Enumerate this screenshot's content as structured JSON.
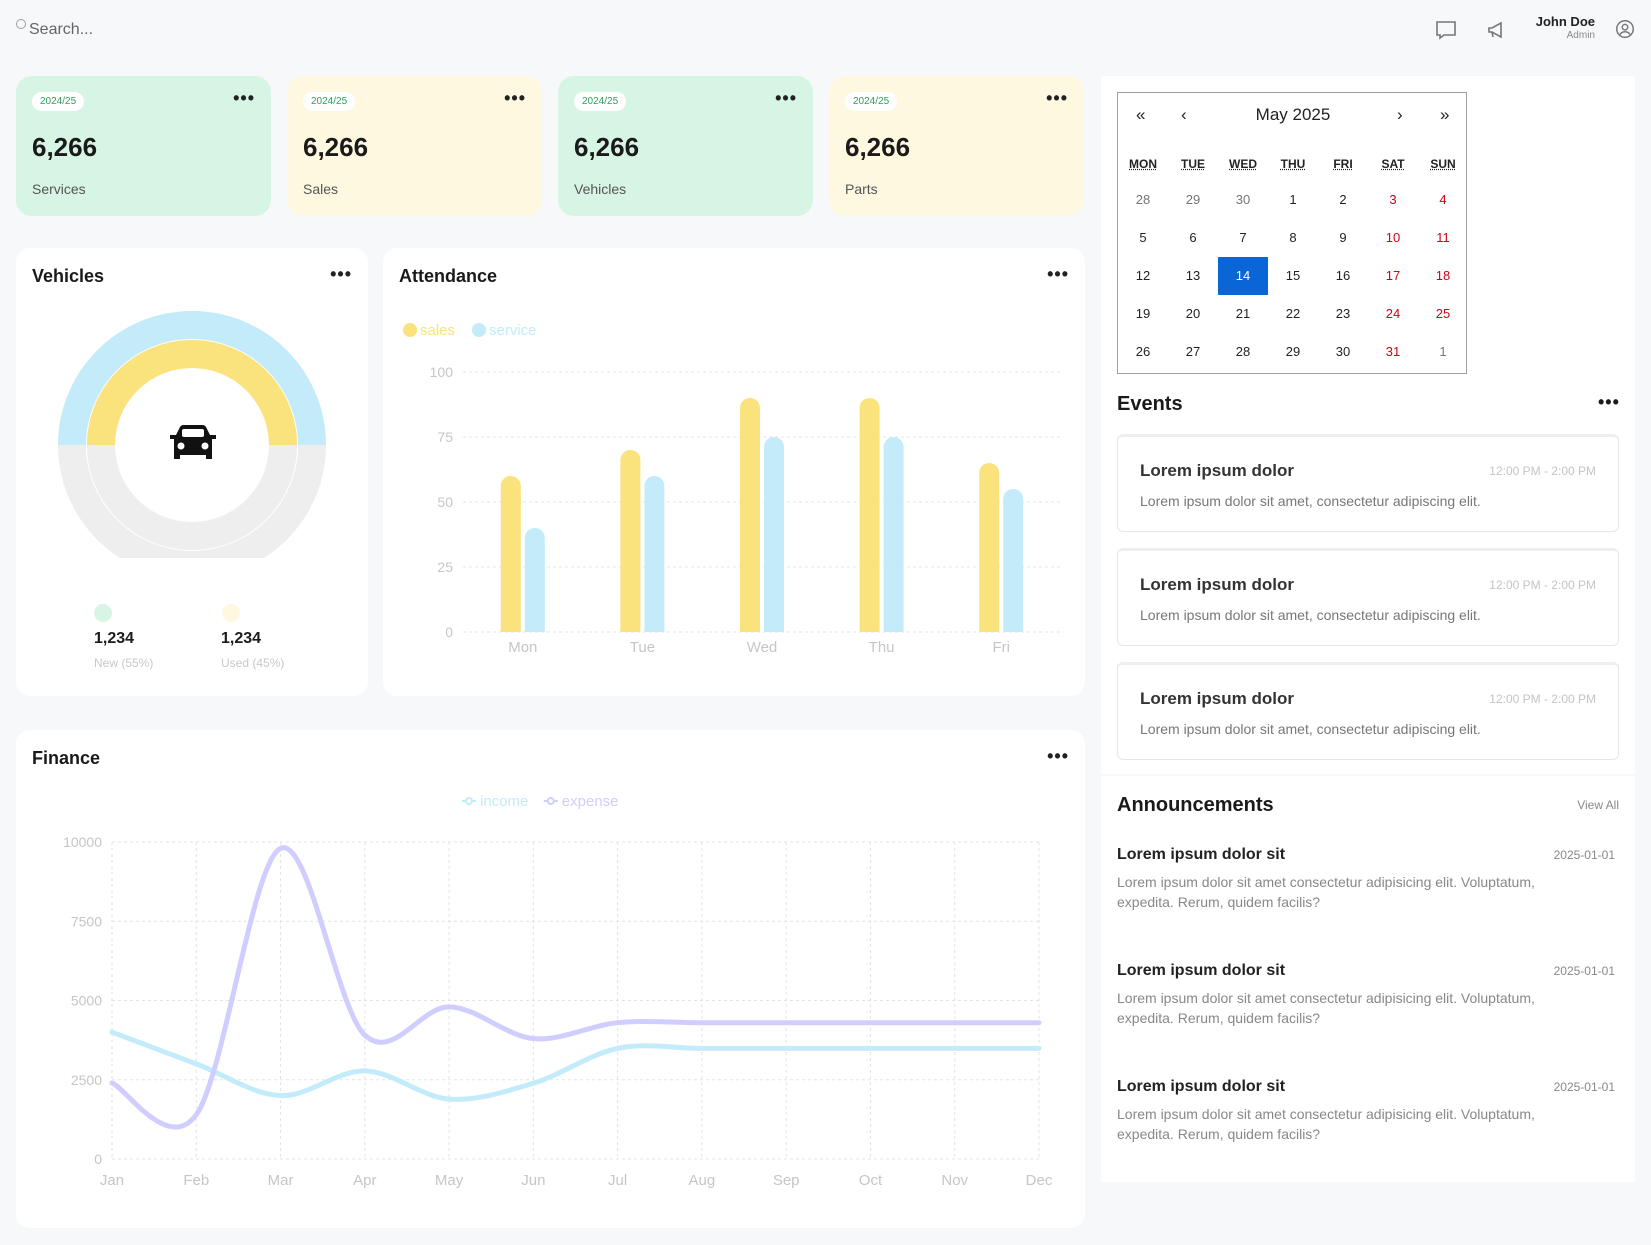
{
  "header": {
    "search_placeholder": "Search...",
    "user_name": "John Doe",
    "user_role": "Admin",
    "icons": [
      "search-icon",
      "message-icon",
      "announcement-icon",
      "user-icon"
    ]
  },
  "stats": [
    {
      "badge": "2024/25",
      "value": "6,266",
      "label": "Services",
      "color": "#d6f5e5"
    },
    {
      "badge": "2024/25",
      "value": "6,266",
      "label": "Sales",
      "color": "#fff8e1"
    },
    {
      "badge": "2024/25",
      "value": "6,266",
      "label": "Vehicles",
      "color": "#d6f5e5"
    },
    {
      "badge": "2024/25",
      "value": "6,266",
      "label": "Parts",
      "color": "#fff8e1"
    }
  ],
  "more_label": "•••",
  "vehicles": {
    "title": "Vehicles",
    "new_value": "1,234",
    "new_label": "New (55%)",
    "used_value": "1,234",
    "used_label": "Used (45%)",
    "icon": "car-icon"
  },
  "attendance": {
    "title": "Attendance"
  },
  "finance": {
    "title": "Finance"
  },
  "calendar": {
    "title": "May 2025",
    "nav_prev_year": "«",
    "nav_prev": "‹",
    "nav_next": "›",
    "nav_next_year": "»",
    "weekdays": [
      "MON",
      "TUE",
      "WED",
      "THU",
      "FRI",
      "SAT",
      "SUN"
    ],
    "weeks": [
      [
        "28",
        "29",
        "30",
        "1",
        "2",
        "3",
        "4"
      ],
      [
        "5",
        "6",
        "7",
        "8",
        "9",
        "10",
        "11"
      ],
      [
        "12",
        "13",
        "14",
        "15",
        "16",
        "17",
        "18"
      ],
      [
        "19",
        "20",
        "21",
        "22",
        "23",
        "24",
        "25"
      ],
      [
        "26",
        "27",
        "28",
        "29",
        "30",
        "31",
        "1"
      ]
    ],
    "selected": "14"
  },
  "events": {
    "title": "Events",
    "items": [
      {
        "title": "Lorem ipsum dolor",
        "time": "12:00 PM - 2:00 PM",
        "desc": "Lorem ipsum dolor sit amet, consectetur adipiscing elit."
      },
      {
        "title": "Lorem ipsum dolor",
        "time": "12:00 PM - 2:00 PM",
        "desc": "Lorem ipsum dolor sit amet, consectetur adipiscing elit."
      },
      {
        "title": "Lorem ipsum dolor",
        "time": "12:00 PM - 2:00 PM",
        "desc": "Lorem ipsum dolor sit amet, consectetur adipiscing elit."
      }
    ]
  },
  "announcements": {
    "title": "Announcements",
    "view_all": "View All",
    "items": [
      {
        "title": "Lorem ipsum dolor sit",
        "date": "2025-01-01",
        "desc": "Lorem ipsum dolor sit amet consectetur adipisicing elit. Voluptatum, expedita. Rerum, quidem facilis?"
      },
      {
        "title": "Lorem ipsum dolor sit",
        "date": "2025-01-01",
        "desc": "Lorem ipsum dolor sit amet consectetur adipisicing elit. Voluptatum, expedita. Rerum, quidem facilis?"
      },
      {
        "title": "Lorem ipsum dolor sit",
        "date": "2025-01-01",
        "desc": "Lorem ipsum dolor sit amet consectetur adipisicing elit. Voluptatum, expedita. Rerum, quidem facilis?"
      }
    ]
  },
  "colors": {
    "green": "#d6f5e5",
    "yellow": "#fae27c",
    "blue": "#c3ebfa",
    "purple": "#cfceff",
    "weekend": "#d0021b",
    "selected": "#0a66d6"
  },
  "chart_data": [
    {
      "type": "pie",
      "title": "Vehicles",
      "series": [
        {
          "name": "New",
          "values": [
            55
          ]
        },
        {
          "name": "Used",
          "values": [
            45
          ]
        }
      ],
      "legend": [
        "New (55%)",
        "Used (45%)"
      ]
    },
    {
      "type": "bar",
      "title": "Attendance",
      "categories": [
        "Mon",
        "Tue",
        "Wed",
        "Thu",
        "Fri"
      ],
      "series": [
        {
          "name": "sales",
          "values": [
            60,
            70,
            90,
            90,
            65
          ],
          "color": "#fae27c"
        },
        {
          "name": "service",
          "values": [
            40,
            60,
            75,
            75,
            55
          ],
          "color": "#c3ebfa"
        }
      ],
      "yticks": [
        0,
        25,
        50,
        75,
        100
      ],
      "ylim": [
        0,
        100
      ],
      "grid": true,
      "legend_position": "top-left"
    },
    {
      "type": "line",
      "title": "Finance",
      "categories": [
        "Jan",
        "Feb",
        "Mar",
        "Apr",
        "May",
        "Jun",
        "Jul",
        "Aug",
        "Sep",
        "Oct",
        "Nov",
        "Dec"
      ],
      "series": [
        {
          "name": "income",
          "values": [
            4000,
            3000,
            2000,
            2780,
            1890,
            2390,
            3490,
            3490,
            3490,
            3490,
            3490,
            3490
          ],
          "color": "#c3ebfa"
        },
        {
          "name": "expense",
          "values": [
            2400,
            1398,
            9800,
            3908,
            4800,
            3800,
            4300,
            4300,
            4300,
            4300,
            4300,
            4300
          ],
          "color": "#cfceff"
        }
      ],
      "yticks": [
        0,
        2500,
        5000,
        7500,
        10000
      ],
      "ylim": [
        0,
        10000
      ],
      "grid": true,
      "legend_position": "top-center"
    }
  ]
}
